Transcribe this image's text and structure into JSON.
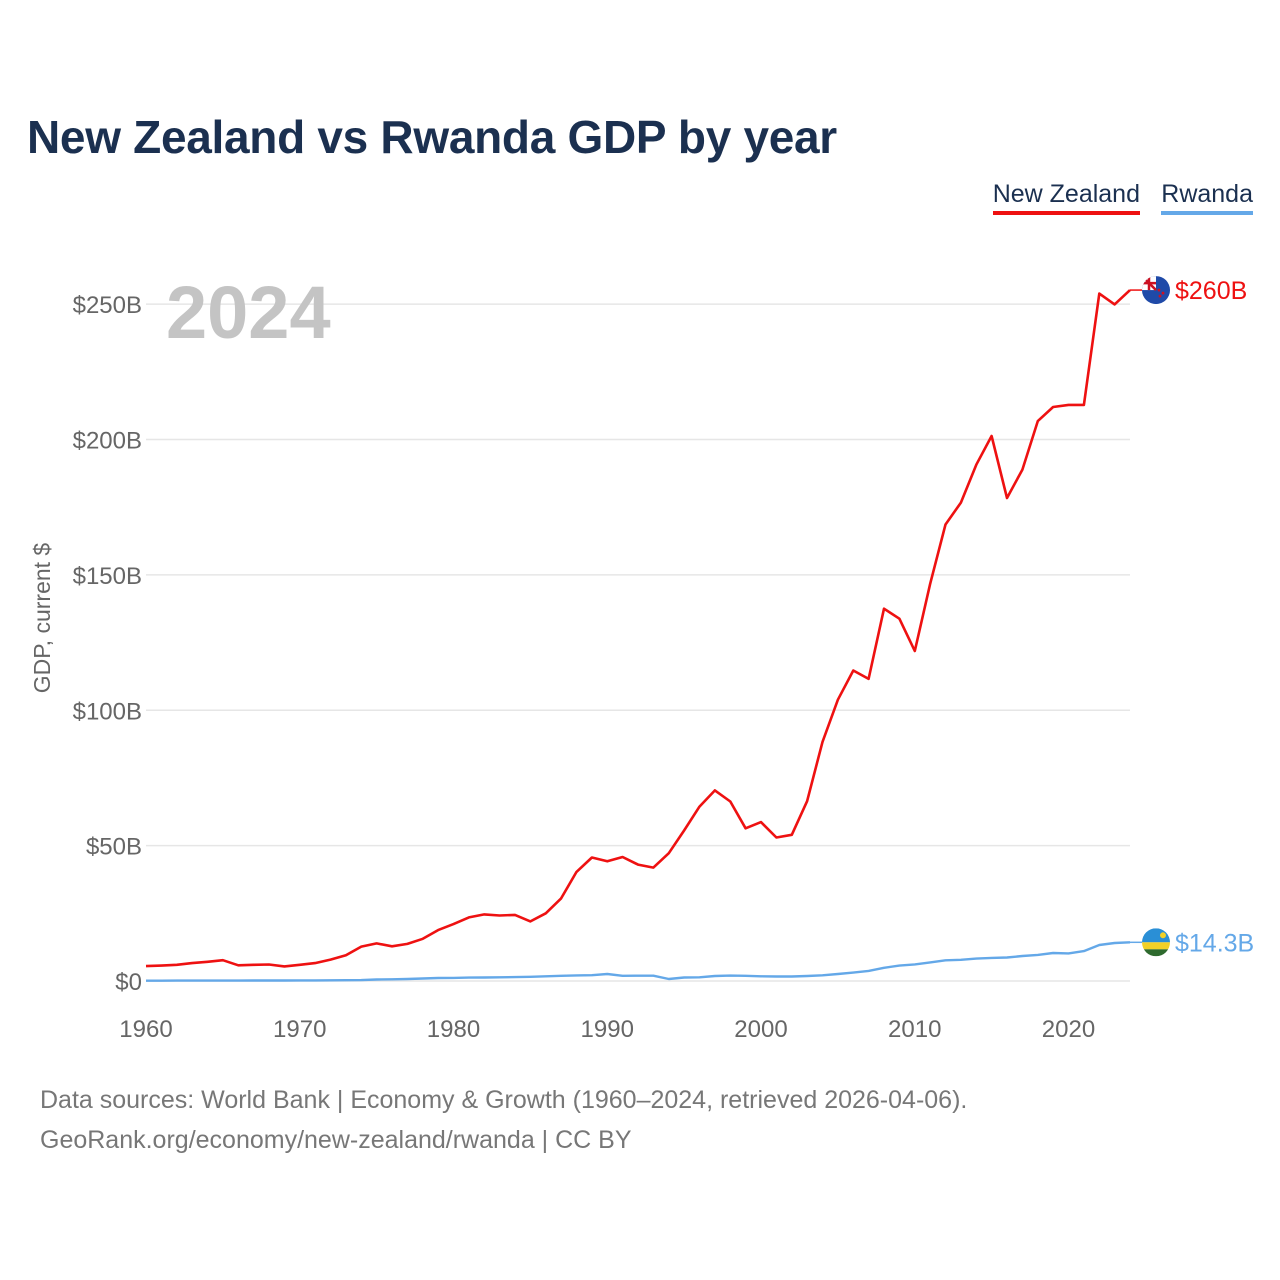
{
  "title": "New Zealand vs Rwanda GDP by year",
  "legend": [
    {
      "label": "New Zealand",
      "color": "#ee1111"
    },
    {
      "label": "Rwanda",
      "color": "#64a8e8"
    }
  ],
  "year_label": "2024",
  "source_line1": "Data sources: World Bank | Economy & Growth (1960–2024, retrieved 2026-04-06).",
  "source_line2": "GeoRank.org/economy/new-zealand/rwanda | CC BY",
  "colors": {
    "new_zealand": "#ee1111",
    "rwanda": "#64a8e8",
    "title": "#1b3050",
    "axis_text": "#666666",
    "year_watermark": "#c4c4c4",
    "grid": "#e6e6e6"
  },
  "chart_data": {
    "type": "line",
    "title": "New Zealand vs Rwanda GDP by year",
    "xlabel": "",
    "ylabel": "GDP, current $",
    "xlim": [
      1960,
      2024
    ],
    "ylim": [
      0,
      270
    ],
    "unit": "billions USD",
    "x_ticks": [
      1960,
      1970,
      1980,
      1990,
      2000,
      2010,
      2020
    ],
    "x_tick_labels": [
      "1960",
      "1970",
      "1980",
      "1990",
      "2000",
      "2010",
      "2020"
    ],
    "y_ticks": [
      0,
      50,
      100,
      150,
      200,
      250
    ],
    "y_tick_labels": [
      "$0",
      "$50B",
      "$100B",
      "$150B",
      "$200B",
      "$250B"
    ],
    "grid": true,
    "legend_position": "top-right",
    "x": [
      1960,
      1961,
      1962,
      1963,
      1964,
      1965,
      1966,
      1967,
      1968,
      1969,
      1970,
      1971,
      1972,
      1973,
      1974,
      1975,
      1976,
      1977,
      1978,
      1979,
      1980,
      1981,
      1982,
      1983,
      1984,
      1985,
      1986,
      1987,
      1988,
      1989,
      1990,
      1991,
      1992,
      1993,
      1994,
      1995,
      1996,
      1997,
      1998,
      1999,
      2000,
      2001,
      2002,
      2003,
      2004,
      2005,
      2006,
      2007,
      2008,
      2009,
      2010,
      2011,
      2012,
      2013,
      2014,
      2015,
      2016,
      2017,
      2018,
      2019,
      2020,
      2021,
      2022,
      2023,
      2024
    ],
    "series": [
      {
        "name": "New Zealand",
        "color": "#ee1111",
        "end_label": "$260B",
        "values": [
          5.5,
          5.7,
          6.0,
          6.6,
          7.1,
          7.7,
          5.8,
          6.0,
          6.1,
          5.4,
          6.0,
          6.6,
          7.9,
          9.5,
          12.7,
          13.9,
          12.8,
          13.7,
          15.6,
          18.8,
          21.0,
          23.5,
          24.6,
          24.2,
          24.4,
          22.0,
          25.0,
          30.5,
          40.3,
          45.6,
          44.2,
          45.8,
          43.0,
          41.9,
          47.2,
          55.6,
          64.4,
          70.4,
          66.3,
          56.4,
          58.7,
          53.0,
          54.0,
          66.4,
          88.3,
          103.9,
          114.7,
          111.6,
          137.5,
          133.8,
          121.9,
          146.6,
          168.6,
          176.7,
          190.7,
          201.3,
          178.4,
          188.9,
          206.8,
          212.0,
          212.8,
          212.8,
          253.9,
          249.9,
          255.2
        ]
      },
      {
        "name": "Rwanda",
        "color": "#64a8e8",
        "end_label": "$14.3B",
        "values": [
          0.12,
          0.12,
          0.13,
          0.13,
          0.13,
          0.15,
          0.13,
          0.19,
          0.19,
          0.2,
          0.22,
          0.22,
          0.25,
          0.29,
          0.33,
          0.56,
          0.64,
          0.75,
          0.93,
          1.1,
          1.16,
          1.26,
          1.28,
          1.36,
          1.44,
          1.56,
          1.74,
          1.93,
          2.07,
          2.16,
          2.58,
          1.91,
          1.97,
          1.95,
          0.75,
          1.29,
          1.38,
          1.85,
          1.99,
          1.92,
          1.73,
          1.67,
          1.68,
          1.86,
          2.1,
          2.58,
          3.11,
          3.74,
          4.89,
          5.67,
          6.12,
          6.88,
          7.65,
          7.82,
          8.29,
          8.54,
          8.69,
          9.25,
          9.64,
          10.35,
          10.18,
          11.06,
          13.31,
          14.03,
          14.29
        ]
      }
    ]
  }
}
